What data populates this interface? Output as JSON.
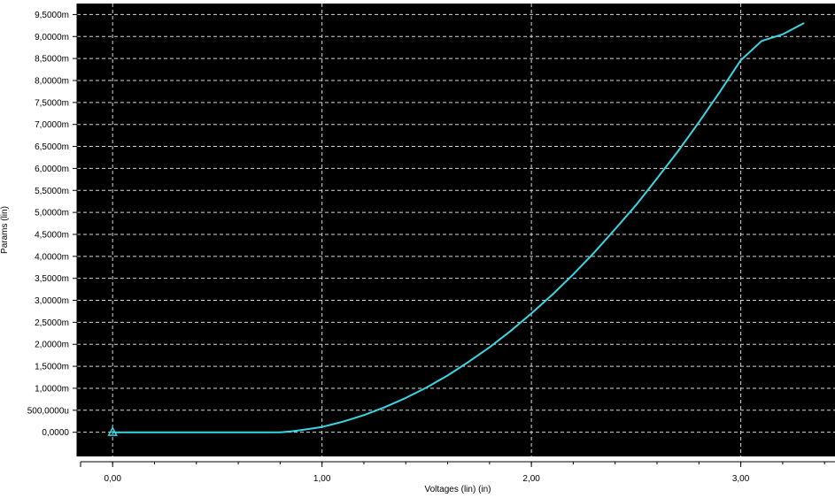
{
  "colors": {
    "plot_background": "#000000",
    "frame_background": "#ffffff",
    "grid": "#d8d8d8",
    "series": "#3ad6e4",
    "text": "#000000"
  },
  "chart_data": {
    "type": "line",
    "xlabel": "Voltages (lin) (in)",
    "ylabel": "Params (lin)",
    "xlim": [
      -0.17,
      3.45
    ],
    "ylim": [
      -0.00055,
      0.00975
    ],
    "grid": true,
    "x_ticks": [
      {
        "value": 0,
        "label": "0,00"
      },
      {
        "value": 1,
        "label": "1,00"
      },
      {
        "value": 2,
        "label": "2,00"
      },
      {
        "value": 3,
        "label": "3,00"
      }
    ],
    "x_minor_step": 0.2,
    "y_ticks": [
      {
        "value": 0.0,
        "label": "0,0000"
      },
      {
        "value": 0.0005,
        "label": "500,0000u"
      },
      {
        "value": 0.001,
        "label": "1,0000m"
      },
      {
        "value": 0.0015,
        "label": "1,5000m"
      },
      {
        "value": 0.002,
        "label": "2,0000m"
      },
      {
        "value": 0.0025,
        "label": "2,5000m"
      },
      {
        "value": 0.003,
        "label": "3,0000m"
      },
      {
        "value": 0.0035,
        "label": "3,5000m"
      },
      {
        "value": 0.004,
        "label": "4,0000m"
      },
      {
        "value": 0.0045,
        "label": "4,5000m"
      },
      {
        "value": 0.005,
        "label": "5,0000m"
      },
      {
        "value": 0.0055,
        "label": "5,5000m"
      },
      {
        "value": 0.006,
        "label": "6,0000m"
      },
      {
        "value": 0.0065,
        "label": "6,5000m"
      },
      {
        "value": 0.007,
        "label": "7,0000m"
      },
      {
        "value": 0.0075,
        "label": "7,5000m"
      },
      {
        "value": 0.008,
        "label": "8,0000m"
      },
      {
        "value": 0.0085,
        "label": "8,5000m"
      },
      {
        "value": 0.009,
        "label": "9,0000m"
      },
      {
        "value": 0.0095,
        "label": "9,5000m"
      }
    ],
    "series": [
      {
        "marker": "triangle",
        "x": [
          0.0,
          0.2,
          0.4,
          0.6,
          0.8,
          0.85,
          0.9,
          1.0,
          1.1,
          1.2,
          1.3,
          1.4,
          1.5,
          1.6,
          1.7,
          1.8,
          1.9,
          2.0,
          2.1,
          2.2,
          2.3,
          2.4,
          2.5,
          2.6,
          2.7,
          2.8,
          2.9,
          3.0,
          3.1,
          3.2,
          3.3
        ],
        "y": [
          0.0,
          0.0,
          0.0,
          0.0,
          0.0,
          2e-05,
          5e-05,
          0.00012,
          0.00024,
          0.00039,
          0.00057,
          0.00078,
          0.00102,
          0.00129,
          0.0016,
          0.00193,
          0.0023,
          0.0027,
          0.00313,
          0.00359,
          0.00409,
          0.00462,
          0.00517,
          0.00577,
          0.00639,
          0.00705,
          0.00774,
          0.00846,
          0.0089,
          0.00905,
          0.0093
        ]
      }
    ]
  }
}
